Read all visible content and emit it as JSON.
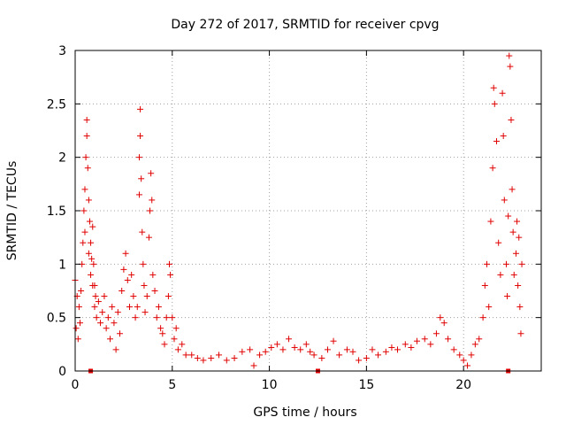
{
  "chart_data": {
    "type": "scatter",
    "title": "Day 272 of 2017, SRMTID for receiver cpvg",
    "xlabel": "GPS time / hours",
    "ylabel": "SRMTID / TECUs",
    "xlim": [
      0,
      24
    ],
    "ylim": [
      0,
      3
    ],
    "xticks": [
      0,
      5,
      10,
      15,
      20
    ],
    "xtick_labels": [
      "0",
      "5",
      "10",
      "15",
      "20"
    ],
    "yticks": [
      0,
      0.5,
      1,
      1.5,
      2,
      2.5,
      3
    ],
    "ytick_labels": [
      "0",
      "0.5",
      "1",
      "1.5",
      "2",
      "2.5",
      "3"
    ],
    "grid": true,
    "marker": "plus",
    "color": "#e00000",
    "series": [
      {
        "name": "SRMTID",
        "points": [
          [
            0.0,
            0.85
          ],
          [
            0.05,
            0.4
          ],
          [
            0.1,
            0.7
          ],
          [
            0.15,
            0.3
          ],
          [
            0.2,
            0.6
          ],
          [
            0.25,
            0.45
          ],
          [
            0.3,
            0.75
          ],
          [
            0.35,
            1.0
          ],
          [
            0.4,
            1.2
          ],
          [
            0.45,
            1.5
          ],
          [
            0.5,
            1.7
          ],
          [
            0.5,
            1.3
          ],
          [
            0.55,
            2.0
          ],
          [
            0.6,
            2.2
          ],
          [
            0.6,
            2.35
          ],
          [
            0.65,
            1.9
          ],
          [
            0.7,
            1.6
          ],
          [
            0.7,
            1.1
          ],
          [
            0.75,
            1.4
          ],
          [
            0.8,
            1.2
          ],
          [
            0.8,
            0.9
          ],
          [
            0.85,
            1.05
          ],
          [
            0.9,
            1.35
          ],
          [
            0.9,
            0.8
          ],
          [
            0.95,
            1.0
          ],
          [
            1.0,
            0.8
          ],
          [
            1.0,
            0.6
          ],
          [
            1.05,
            0.7
          ],
          [
            1.1,
            0.5
          ],
          [
            1.2,
            0.65
          ],
          [
            1.3,
            0.45
          ],
          [
            1.4,
            0.55
          ],
          [
            1.5,
            0.7
          ],
          [
            1.6,
            0.4
          ],
          [
            1.7,
            0.5
          ],
          [
            1.8,
            0.3
          ],
          [
            1.9,
            0.6
          ],
          [
            2.0,
            0.45
          ],
          [
            2.1,
            0.2
          ],
          [
            2.2,
            0.55
          ],
          [
            2.3,
            0.35
          ],
          [
            2.4,
            0.75
          ],
          [
            2.5,
            0.95
          ],
          [
            2.6,
            1.1
          ],
          [
            2.7,
            0.85
          ],
          [
            2.8,
            0.6
          ],
          [
            2.9,
            0.9
          ],
          [
            3.0,
            0.7
          ],
          [
            3.1,
            0.5
          ],
          [
            3.2,
            0.6
          ],
          [
            3.3,
            1.65
          ],
          [
            3.3,
            2.0
          ],
          [
            3.35,
            2.45
          ],
          [
            3.35,
            2.2
          ],
          [
            3.4,
            1.8
          ],
          [
            3.45,
            1.3
          ],
          [
            3.5,
            1.0
          ],
          [
            3.55,
            0.8
          ],
          [
            3.6,
            0.55
          ],
          [
            3.7,
            0.7
          ],
          [
            3.8,
            1.25
          ],
          [
            3.85,
            1.5
          ],
          [
            3.9,
            1.85
          ],
          [
            3.95,
            1.6
          ],
          [
            4.0,
            0.9
          ],
          [
            4.1,
            0.75
          ],
          [
            4.2,
            0.5
          ],
          [
            4.3,
            0.6
          ],
          [
            4.4,
            0.4
          ],
          [
            4.5,
            0.35
          ],
          [
            4.6,
            0.25
          ],
          [
            4.7,
            0.5
          ],
          [
            4.8,
            0.7
          ],
          [
            4.85,
            1.0
          ],
          [
            4.9,
            0.9
          ],
          [
            5.0,
            0.5
          ],
          [
            5.1,
            0.3
          ],
          [
            5.2,
            0.4
          ],
          [
            5.3,
            0.2
          ],
          [
            5.5,
            0.25
          ],
          [
            5.7,
            0.15
          ],
          [
            6.0,
            0.15
          ],
          [
            6.3,
            0.12
          ],
          [
            6.6,
            0.1
          ],
          [
            7.0,
            0.12
          ],
          [
            7.4,
            0.15
          ],
          [
            7.8,
            0.1
          ],
          [
            8.2,
            0.12
          ],
          [
            8.6,
            0.18
          ],
          [
            9.0,
            0.2
          ],
          [
            9.2,
            0.05
          ],
          [
            9.5,
            0.15
          ],
          [
            9.8,
            0.18
          ],
          [
            10.1,
            0.22
          ],
          [
            10.4,
            0.25
          ],
          [
            10.7,
            0.2
          ],
          [
            11.0,
            0.3
          ],
          [
            11.3,
            0.22
          ],
          [
            11.6,
            0.2
          ],
          [
            11.9,
            0.25
          ],
          [
            12.1,
            0.18
          ],
          [
            12.3,
            0.15
          ],
          [
            12.7,
            0.12
          ],
          [
            13.0,
            0.2
          ],
          [
            13.3,
            0.28
          ],
          [
            13.6,
            0.15
          ],
          [
            14.0,
            0.2
          ],
          [
            14.3,
            0.18
          ],
          [
            14.6,
            0.1
          ],
          [
            15.0,
            0.12
          ],
          [
            15.3,
            0.2
          ],
          [
            15.6,
            0.15
          ],
          [
            16.0,
            0.18
          ],
          [
            16.3,
            0.22
          ],
          [
            16.6,
            0.2
          ],
          [
            17.0,
            0.25
          ],
          [
            17.3,
            0.22
          ],
          [
            17.6,
            0.28
          ],
          [
            18.0,
            0.3
          ],
          [
            18.3,
            0.25
          ],
          [
            18.6,
            0.35
          ],
          [
            18.8,
            0.5
          ],
          [
            19.0,
            0.45
          ],
          [
            19.2,
            0.3
          ],
          [
            19.5,
            0.2
          ],
          [
            19.8,
            0.15
          ],
          [
            20.0,
            0.1
          ],
          [
            20.2,
            0.05
          ],
          [
            20.4,
            0.15
          ],
          [
            20.6,
            0.25
          ],
          [
            20.8,
            0.3
          ],
          [
            21.0,
            0.5
          ],
          [
            21.1,
            0.8
          ],
          [
            21.2,
            1.0
          ],
          [
            21.3,
            0.6
          ],
          [
            21.4,
            1.4
          ],
          [
            21.5,
            1.9
          ],
          [
            21.55,
            2.65
          ],
          [
            21.6,
            2.5
          ],
          [
            21.7,
            2.15
          ],
          [
            21.8,
            1.2
          ],
          [
            21.9,
            0.9
          ],
          [
            22.0,
            2.6
          ],
          [
            22.05,
            2.2
          ],
          [
            22.1,
            1.6
          ],
          [
            22.2,
            1.0
          ],
          [
            22.25,
            0.7
          ],
          [
            22.3,
            1.45
          ],
          [
            22.35,
            2.95
          ],
          [
            22.4,
            2.85
          ],
          [
            22.45,
            2.35
          ],
          [
            22.5,
            1.7
          ],
          [
            22.55,
            1.3
          ],
          [
            22.6,
            0.9
          ],
          [
            22.7,
            1.1
          ],
          [
            22.75,
            1.4
          ],
          [
            22.8,
            0.8
          ],
          [
            22.85,
            1.25
          ],
          [
            22.9,
            0.6
          ],
          [
            22.95,
            0.35
          ],
          [
            23.0,
            1.0
          ]
        ]
      }
    ],
    "zero_flags_x": [
      0.8,
      12.5,
      22.3
    ]
  }
}
